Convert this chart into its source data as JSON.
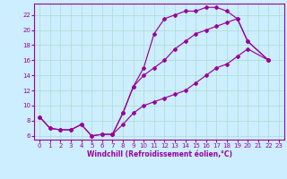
{
  "xlabel": "Windchill (Refroidissement éolien,°C)",
  "bg_color": "#cceeff",
  "line_color": "#990099",
  "grid_color": "#aaddcc",
  "xlim": [
    -0.5,
    23.5
  ],
  "ylim": [
    5.5,
    23.5
  ],
  "xticks": [
    0,
    1,
    2,
    3,
    4,
    5,
    6,
    7,
    8,
    9,
    10,
    11,
    12,
    13,
    14,
    15,
    16,
    17,
    18,
    19,
    20,
    21,
    22,
    23
  ],
  "yticks": [
    6,
    8,
    10,
    12,
    14,
    16,
    18,
    20,
    22
  ],
  "curve1_x": [
    0,
    1,
    2,
    3,
    4,
    5,
    6,
    7,
    8,
    9,
    10,
    11,
    12,
    13,
    14,
    15,
    16,
    17,
    18,
    19,
    20,
    22
  ],
  "curve1_y": [
    8.5,
    7.0,
    6.8,
    6.8,
    7.5,
    6.0,
    6.2,
    6.2,
    9.0,
    12.5,
    15.0,
    19.5,
    21.5,
    22.0,
    22.5,
    22.5,
    23.0,
    23.0,
    22.5,
    21.5,
    18.5,
    16.0
  ],
  "curve2_x": [
    7,
    8,
    9,
    10,
    11,
    12,
    13,
    14,
    15,
    16,
    17,
    18,
    19,
    20,
    22
  ],
  "curve2_y": [
    6.2,
    9.0,
    12.5,
    14.0,
    15.0,
    16.0,
    17.5,
    18.5,
    19.5,
    20.0,
    20.5,
    21.0,
    21.5,
    18.5,
    16.0
  ],
  "curve3_x": [
    0,
    1,
    2,
    3,
    4,
    5,
    6,
    7,
    8,
    9,
    10,
    11,
    12,
    13,
    14,
    15,
    16,
    17,
    18,
    19,
    20,
    22
  ],
  "curve3_y": [
    8.5,
    7.0,
    6.8,
    6.8,
    7.5,
    6.0,
    6.2,
    6.2,
    7.5,
    9.0,
    10.0,
    10.5,
    11.0,
    11.5,
    12.0,
    13.0,
    14.0,
    15.0,
    15.5,
    16.5,
    17.5,
    16.0
  ]
}
